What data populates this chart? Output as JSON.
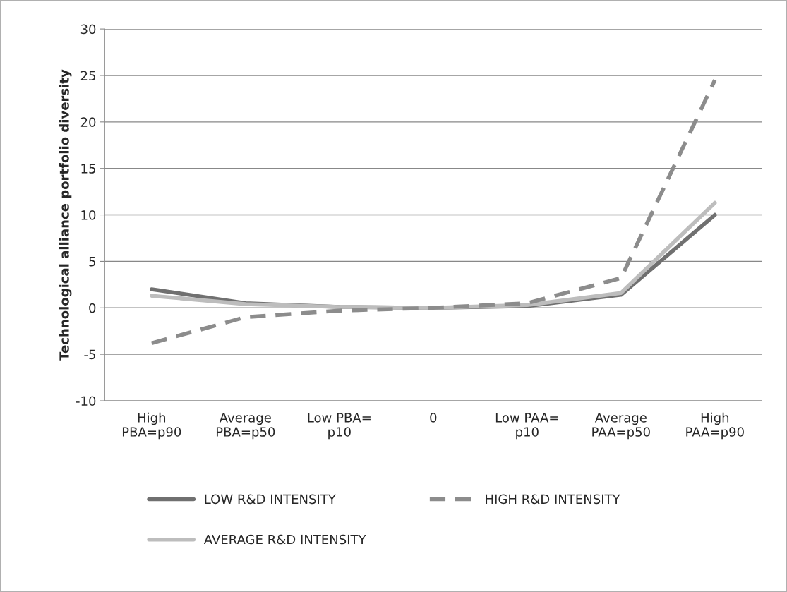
{
  "chart_data": {
    "type": "line",
    "ylabel": "Technological alliance portfolio diversity",
    "categories": [
      "High\nPBA=p90",
      "Average\nPBA=p50",
      "Low PBA=\np10",
      "0",
      "Low PAA=\np10",
      "Average\nPAA=p50",
      "High\nPAA=p90"
    ],
    "series": [
      {
        "name": "LOW R&D INTENSITY",
        "color": "#707070",
        "line_style": "solid",
        "values": [
          2.0,
          0.5,
          0.1,
          0,
          0.2,
          1.4,
          10.0
        ]
      },
      {
        "name": "AVERAGE R&D INTENSITY",
        "color": "#bdbdbd",
        "line_style": "solid",
        "values": [
          1.3,
          0.4,
          0.1,
          0,
          0.3,
          1.6,
          11.3
        ]
      },
      {
        "name": "HIGH R&D INTENSITY",
        "color": "#8c8c8c",
        "line_style": "dashed",
        "values": [
          -3.8,
          -1.0,
          -0.3,
          0,
          0.5,
          3.2,
          24.5
        ]
      }
    ],
    "ylim": [
      -10,
      30
    ],
    "yticks": [
      -10,
      -5,
      0,
      5,
      10,
      15,
      20,
      25,
      30
    ],
    "grid": "y",
    "legend": "bottom",
    "marker": "none"
  }
}
